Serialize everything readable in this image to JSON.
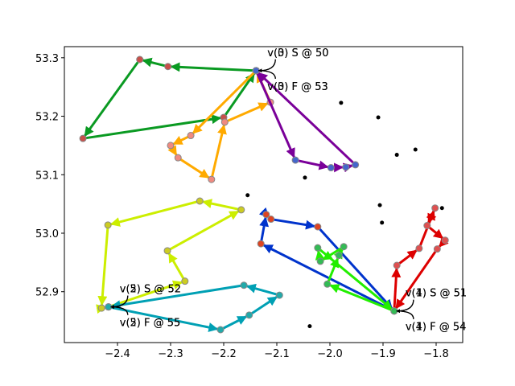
{
  "chart_data": {
    "type": "route",
    "xlim": [
      -2.5,
      -1.75
    ],
    "ylim": [
      52.813,
      53.319
    ],
    "xticks": [
      {
        "value": -2.4,
        "label": "−2.4"
      },
      {
        "value": -2.3,
        "label": "−2.3"
      },
      {
        "value": -2.2,
        "label": "−2.2"
      },
      {
        "value": -2.1,
        "label": "−2.1"
      },
      {
        "value": -2.0,
        "label": "−2.0"
      },
      {
        "value": -1.9,
        "label": "−1.9"
      },
      {
        "value": -1.8,
        "label": "−1.8"
      }
    ],
    "yticks": [
      52.9,
      {
        "value": 53.0,
        "label": "53.0"
      },
      53.1,
      53.2,
      53.3
    ],
    "series": [
      {
        "color": "#0a9a22",
        "marker_color": "#c8504a",
        "x": [
          -2.139,
          -2.305,
          -2.358,
          -2.465,
          -2.2,
          -2.139
        ],
        "y": [
          53.278,
          53.285,
          53.297,
          53.162,
          53.198,
          53.278
        ]
      },
      {
        "color": "#ffaa00",
        "marker_color": "#f08a80",
        "x": [
          -2.139,
          -2.262,
          -2.3,
          -2.286,
          -2.223,
          -2.198,
          -2.112,
          -2.139
        ],
        "y": [
          53.278,
          53.167,
          53.15,
          53.129,
          53.092,
          53.19,
          53.224,
          53.278
        ]
      },
      {
        "color": "#7a0099",
        "marker_color": "#4466cc",
        "x": [
          -2.139,
          -2.065,
          -1.998,
          -1.97,
          -1.952,
          -2.139
        ],
        "y": [
          53.278,
          53.125,
          53.112,
          53.113,
          53.117,
          53.278
        ]
      },
      {
        "color": "#dd0000",
        "marker_color": "#e05050",
        "x": [
          -1.879,
          -1.874,
          -1.832,
          -1.802,
          -1.817,
          -1.783,
          -1.798,
          -1.879
        ],
        "y": [
          52.867,
          52.945,
          52.974,
          53.043,
          53.013,
          52.988,
          52.973,
          52.867
        ]
      },
      {
        "color": "#0033cc",
        "marker_color": "#dd4422",
        "x": [
          -1.879,
          -2.13,
          -2.12,
          -2.111,
          -2.023,
          -1.879
        ],
        "y": [
          52.867,
          52.982,
          53.032,
          53.024,
          53.011,
          52.867
        ]
      },
      {
        "color": "#22ee00",
        "marker_color": "#33bb55",
        "x": [
          -1.879,
          -2.005,
          -1.983,
          -1.974,
          -2.018,
          -2.023,
          -1.879
        ],
        "y": [
          52.867,
          52.913,
          52.962,
          52.977,
          52.952,
          52.975,
          52.867
        ]
      },
      {
        "color": "#ccee00",
        "marker_color": "#cccc22",
        "x": [
          -2.417,
          -2.273,
          -2.306,
          -2.167,
          -2.245,
          -2.418,
          -2.43,
          -2.417
        ],
        "y": [
          52.874,
          52.918,
          52.97,
          53.04,
          53.055,
          53.014,
          52.872,
          52.874
        ]
      },
      {
        "color": "#00a0b4",
        "marker_color": "#22aaaa",
        "x": [
          -2.417,
          -2.206,
          -2.152,
          -2.095,
          -2.162,
          -2.417
        ],
        "y": [
          52.874,
          52.835,
          52.86,
          52.894,
          52.911,
          52.874
        ]
      }
    ],
    "points": {
      "color": "#000000",
      "x": [
        -1.979,
        -1.909,
        -1.874,
        -1.839,
        -2.047,
        -2.155,
        -1.906,
        -1.902,
        -1.789,
        -2.038
      ],
      "y": [
        53.223,
        53.198,
        53.134,
        53.143,
        53.095,
        53.065,
        53.048,
        53.018,
        53.043,
        52.841
      ]
    },
    "annotations": [
      {
        "text": "v(0) S @ 50",
        "x": -2.139,
        "y": 53.278
      },
      {
        "text": "v(3) S @ 50",
        "x": -2.139,
        "y": 53.278
      },
      {
        "text": "v(0) F @ 53",
        "x": -2.139,
        "y": 53.278
      },
      {
        "text": "v(3) F @ 53",
        "x": -2.139,
        "y": 53.278
      },
      {
        "text": "v(1) S @ 51",
        "x": -1.879,
        "y": 52.867
      },
      {
        "text": "v(4) S @ 51",
        "x": -1.879,
        "y": 52.867
      },
      {
        "text": "v(1) F @ 54",
        "x": -1.879,
        "y": 52.867
      },
      {
        "text": "v(4) F @ 54",
        "x": -1.879,
        "y": 52.867
      },
      {
        "text": "v(2) S @ 52",
        "x": -2.417,
        "y": 52.874
      },
      {
        "text": "v(5) S @ 52",
        "x": -2.417,
        "y": 52.874
      },
      {
        "text": "v(2) F @ 55",
        "x": -2.417,
        "y": 52.874
      },
      {
        "text": "v(5) F @ 55",
        "x": -2.417,
        "y": 52.874
      }
    ]
  }
}
